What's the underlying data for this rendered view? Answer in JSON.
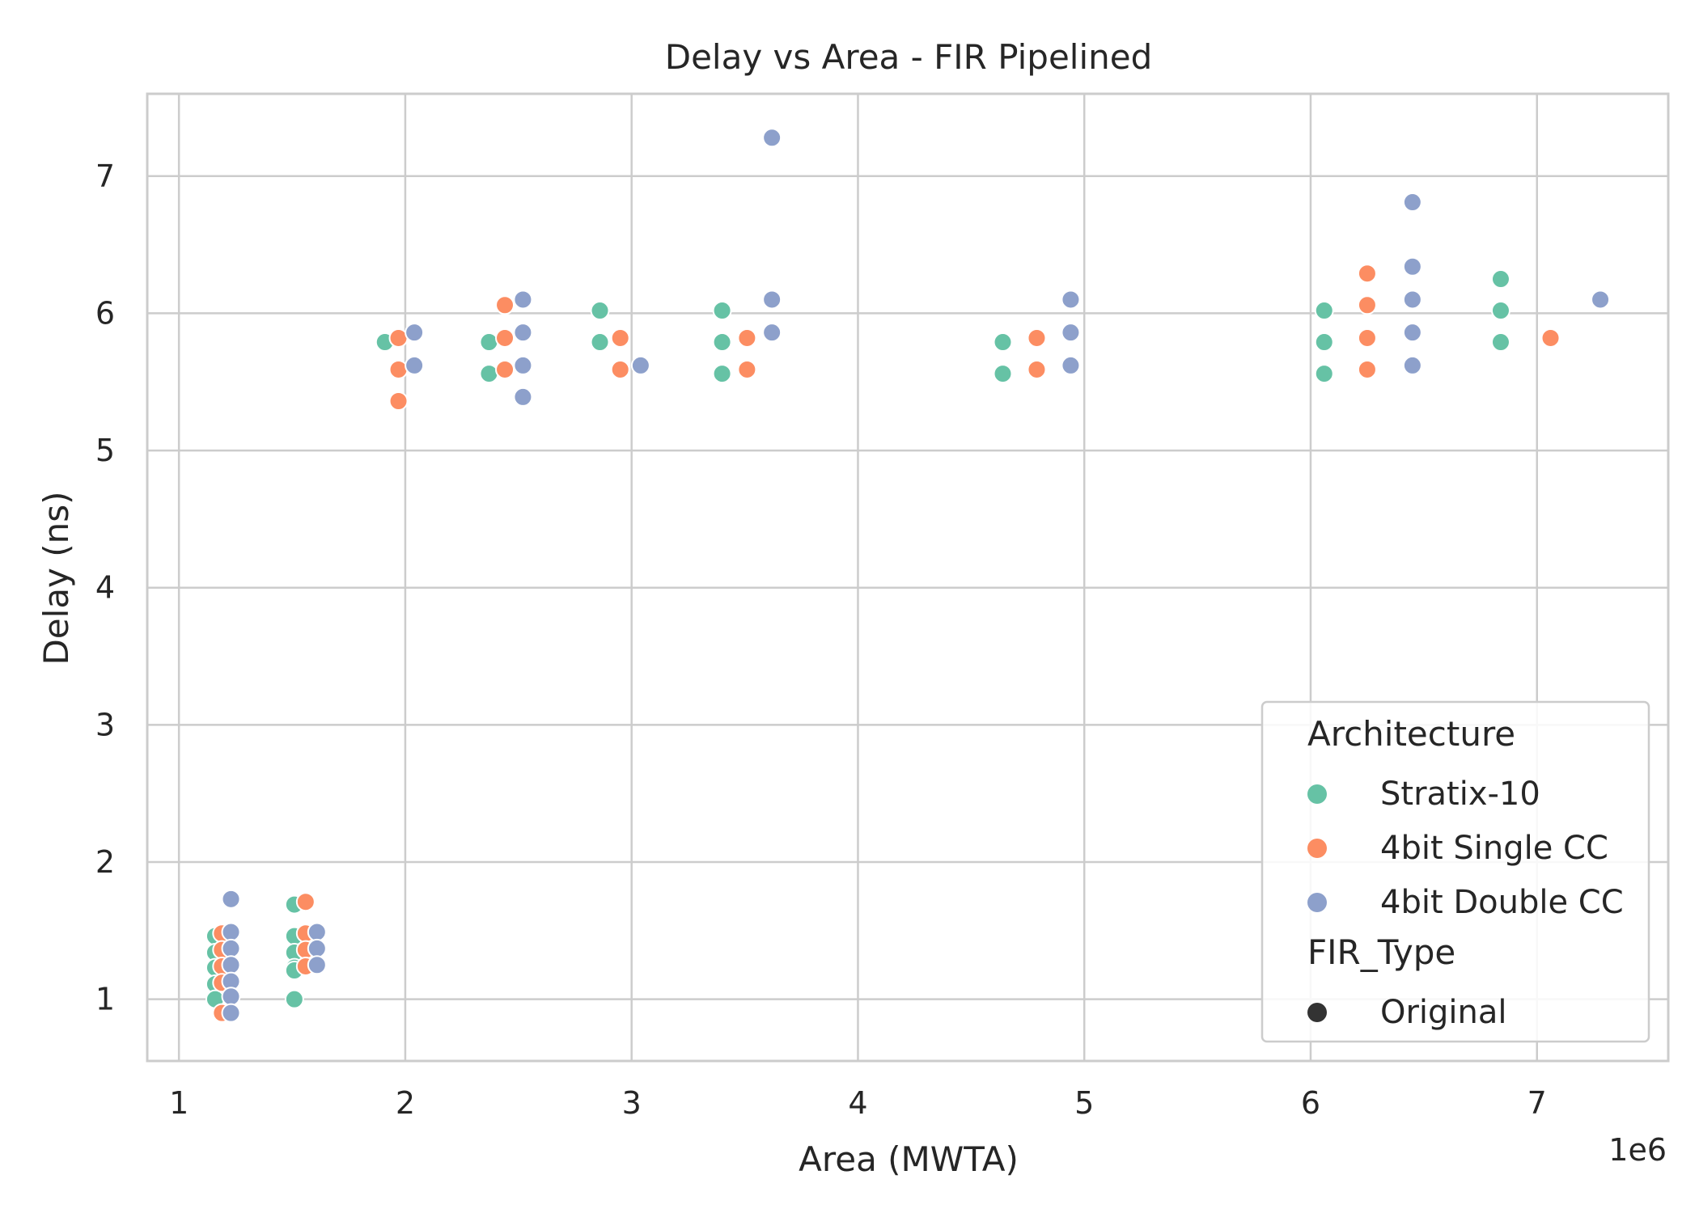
{
  "chart_data": {
    "type": "scatter",
    "title": "Delay vs Area - FIR Pipelined",
    "xlabel": "Area (MWTA)",
    "ylabel": "Delay (ns)",
    "x_offset_text": "1e6",
    "x_multiplier": 1000000,
    "xlim": [
      0.86,
      7.58
    ],
    "ylim": [
      0.55,
      7.6
    ],
    "xticks": [
      1,
      2,
      3,
      4,
      5,
      6,
      7
    ],
    "yticks": [
      1,
      2,
      3,
      4,
      5,
      6,
      7
    ],
    "grid": true,
    "legend": {
      "placement": "lower-right",
      "hue_title": "Architecture",
      "style_title": "FIR_Type",
      "style_items": [
        {
          "label": "Original",
          "color": "#333333"
        }
      ]
    },
    "series": [
      {
        "name": "Stratix-10",
        "color": "#66c2a5",
        "points": [
          [
            1.16,
            1.46
          ],
          [
            1.16,
            1.34
          ],
          [
            1.16,
            1.23
          ],
          [
            1.16,
            1.11
          ],
          [
            1.16,
            1.0
          ],
          [
            1.51,
            1.69
          ],
          [
            1.51,
            1.46
          ],
          [
            1.51,
            1.34
          ],
          [
            1.51,
            1.23
          ],
          [
            1.51,
            1.21
          ],
          [
            1.51,
            1.0
          ],
          [
            1.91,
            5.79
          ],
          [
            2.37,
            5.79
          ],
          [
            2.37,
            5.56
          ],
          [
            2.86,
            6.02
          ],
          [
            2.86,
            5.79
          ],
          [
            3.4,
            6.02
          ],
          [
            3.4,
            5.79
          ],
          [
            3.4,
            5.56
          ],
          [
            4.64,
            5.79
          ],
          [
            4.64,
            5.56
          ],
          [
            6.06,
            6.02
          ],
          [
            6.06,
            5.79
          ],
          [
            6.06,
            5.56
          ],
          [
            6.84,
            6.25
          ],
          [
            6.84,
            6.02
          ],
          [
            6.84,
            5.79
          ]
        ]
      },
      {
        "name": "4bit Single CC",
        "color": "#fc8d62",
        "points": [
          [
            1.19,
            1.48
          ],
          [
            1.19,
            1.36
          ],
          [
            1.19,
            1.24
          ],
          [
            1.19,
            1.12
          ],
          [
            1.19,
            0.9
          ],
          [
            1.56,
            1.71
          ],
          [
            1.56,
            1.48
          ],
          [
            1.56,
            1.36
          ],
          [
            1.56,
            1.24
          ],
          [
            1.97,
            5.82
          ],
          [
            1.97,
            5.59
          ],
          [
            1.97,
            5.36
          ],
          [
            2.44,
            6.06
          ],
          [
            2.44,
            5.82
          ],
          [
            2.44,
            5.59
          ],
          [
            2.95,
            5.82
          ],
          [
            2.95,
            5.59
          ],
          [
            3.51,
            5.82
          ],
          [
            3.51,
            5.59
          ],
          [
            4.79,
            5.82
          ],
          [
            4.79,
            5.59
          ],
          [
            6.25,
            6.29
          ],
          [
            6.25,
            6.06
          ],
          [
            6.25,
            5.82
          ],
          [
            6.25,
            5.59
          ],
          [
            7.06,
            5.82
          ]
        ]
      },
      {
        "name": "4bit Double CC",
        "color": "#8da0cb",
        "points": [
          [
            1.23,
            1.73
          ],
          [
            1.23,
            1.49
          ],
          [
            1.23,
            1.37
          ],
          [
            1.23,
            1.25
          ],
          [
            1.23,
            1.13
          ],
          [
            1.23,
            1.02
          ],
          [
            1.23,
            0.9
          ],
          [
            1.61,
            1.49
          ],
          [
            1.61,
            1.37
          ],
          [
            1.61,
            1.25
          ],
          [
            2.04,
            5.86
          ],
          [
            2.04,
            5.62
          ],
          [
            2.52,
            6.1
          ],
          [
            2.52,
            5.86
          ],
          [
            2.52,
            5.62
          ],
          [
            2.52,
            5.39
          ],
          [
            3.04,
            5.62
          ],
          [
            3.62,
            7.28
          ],
          [
            3.62,
            6.1
          ],
          [
            3.62,
            5.86
          ],
          [
            4.94,
            6.1
          ],
          [
            4.94,
            5.86
          ],
          [
            4.94,
            5.62
          ],
          [
            6.45,
            6.81
          ],
          [
            6.45,
            6.34
          ],
          [
            6.45,
            6.1
          ],
          [
            6.45,
            5.86
          ],
          [
            6.45,
            5.62
          ],
          [
            7.28,
            6.1
          ]
        ]
      }
    ]
  }
}
